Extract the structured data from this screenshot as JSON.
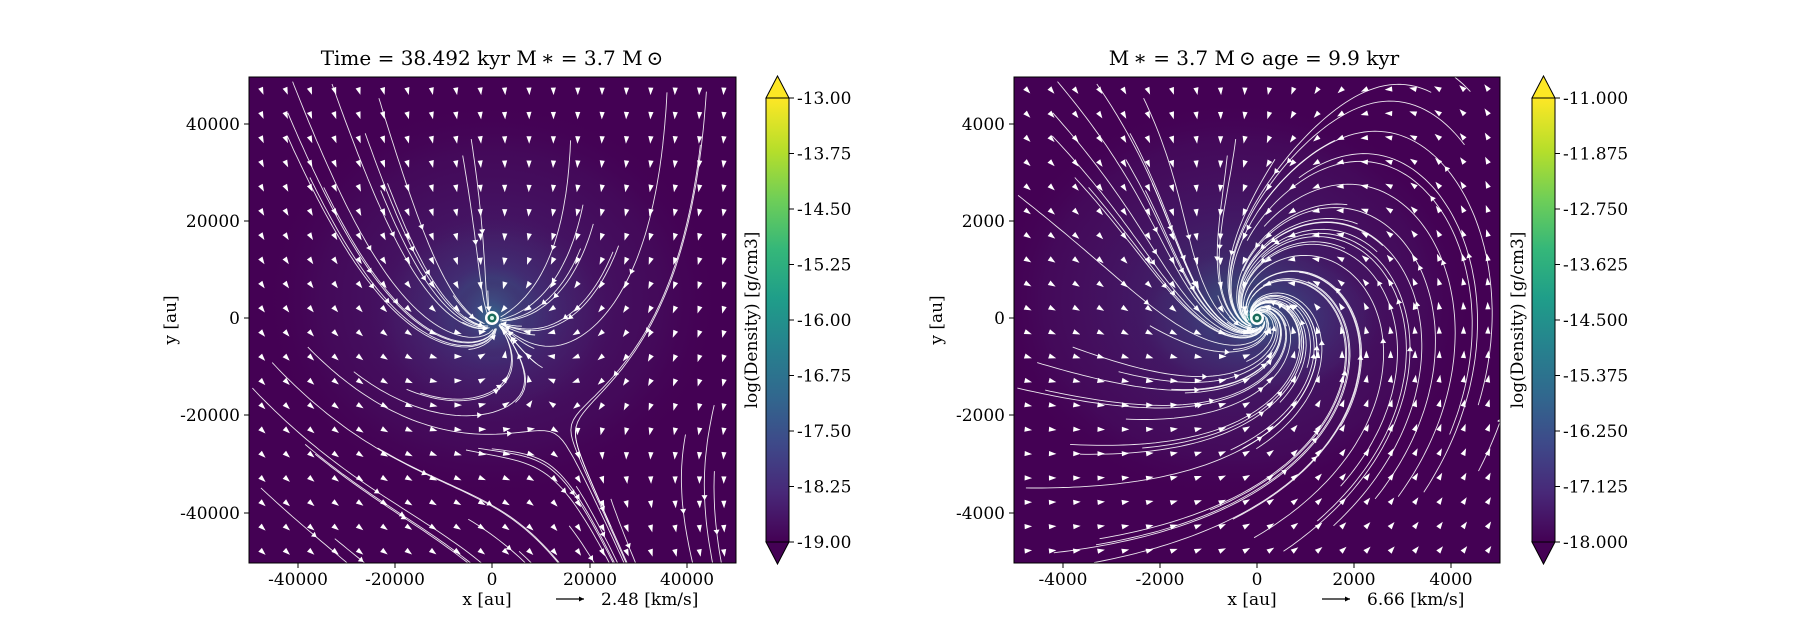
{
  "panels": [
    {
      "title": "Time = 38.492 kyr    M ∗ = 3.7 M ⊙",
      "xlabel": "x [au]",
      "ylabel": "y [au]",
      "x_ticks": [
        "-40000",
        "-20000",
        "0",
        "20000",
        "40000"
      ],
      "y_ticks": [
        "40000",
        "20000",
        "0",
        "-20000",
        "-40000"
      ],
      "xlim": [
        -50000,
        50000
      ],
      "ylim": [
        -50000,
        50000
      ],
      "quiver_key": "2.48 [km/s]",
      "colorbar": {
        "label": "log(Density) [g/cm3]",
        "ticks": [
          "-13.00",
          "-13.75",
          "-14.50",
          "-15.25",
          "-16.00",
          "-16.75",
          "-17.50",
          "-18.25",
          "-19.00"
        ],
        "range": [
          -19,
          -13
        ]
      },
      "field": {
        "mode": "infall",
        "swirl": 0.25,
        "drift": [
          0.35,
          -1.0
        ]
      }
    },
    {
      "title": "M ∗ = 3.7 M ⊙          age = 9.9 kyr",
      "xlabel": "x [au]",
      "ylabel": "y [au]",
      "x_ticks": [
        "-4000",
        "-2000",
        "0",
        "2000",
        "4000"
      ],
      "y_ticks": [
        "4000",
        "2000",
        "0",
        "-2000",
        "-4000"
      ],
      "xlim": [
        -5000,
        5000
      ],
      "ylim": [
        -5000,
        5000
      ],
      "quiver_key": "6.66 [km/s]",
      "colorbar": {
        "label": "log(Density) [g/cm3]",
        "ticks": [
          "-11.000",
          "-11.875",
          "-12.750",
          "-13.625",
          "-14.500",
          "-15.375",
          "-16.250",
          "-17.125",
          "-18.000"
        ],
        "range": [
          -18,
          -11
        ]
      },
      "field": {
        "mode": "spiral",
        "swirl": 1.1,
        "drift": [
          0.6,
          0.15
        ]
      }
    }
  ],
  "colors": {
    "background": "#440154",
    "streamline": "#ffffff",
    "star_fill": "#ffffff",
    "star_ring": "#1a6b5a",
    "viridis": [
      "#440154",
      "#482878",
      "#3e4989",
      "#31688e",
      "#26828e",
      "#1f9e89",
      "#35b779",
      "#6ece58",
      "#b5de2b",
      "#fde725"
    ]
  }
}
